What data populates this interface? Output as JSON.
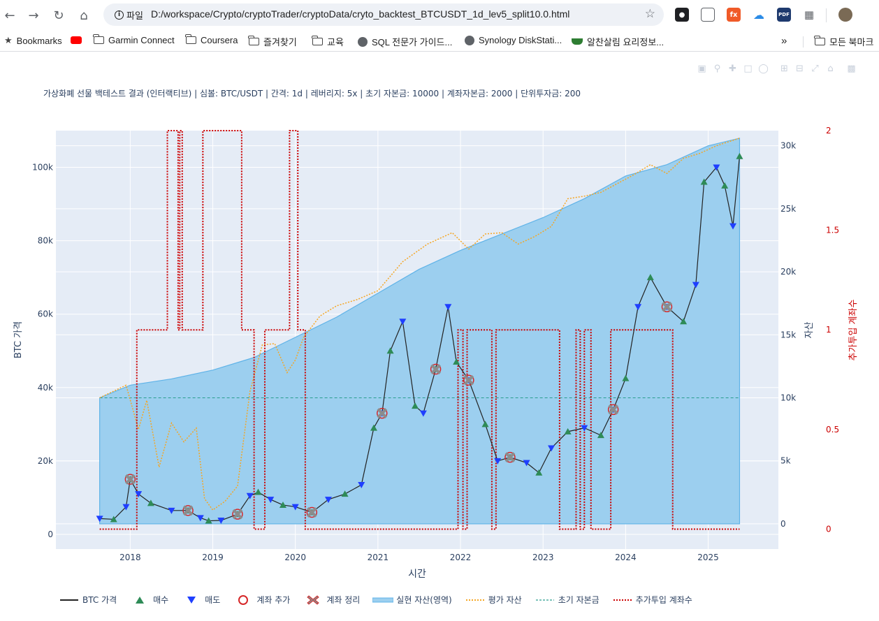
{
  "browser": {
    "page_info_label": "파일",
    "url": "D:/workspace/Crypto/cryptoTrader/cryptoData/cryto_backtest_BTCUSDT_1d_lev5_split10.0.html",
    "bookmarks": [
      {
        "label": "Bookmarks",
        "icon": "star-icon"
      },
      {
        "label": "",
        "icon": "youtube-icon"
      },
      {
        "label": "Garmin Connect",
        "icon": "folder-icon"
      },
      {
        "label": "Coursera",
        "icon": "folder-icon"
      },
      {
        "label": "즐겨찾기",
        "icon": "folder-icon"
      },
      {
        "label": "교육",
        "icon": "folder-icon"
      },
      {
        "label": "SQL 전문가 가이드...",
        "icon": "globe-icon"
      },
      {
        "label": "Synology DiskStati...",
        "icon": "globe-icon"
      },
      {
        "label": "알찬살림 요리정보...",
        "icon": "pot-icon"
      }
    ],
    "overflow_label": "»",
    "all_bookmarks_label": "모든 북마크",
    "extensions": [
      "ext-1",
      "ext-2",
      "ext-3",
      "onedrive-icon",
      "PDF",
      "puzzle-icon",
      "avatar"
    ],
    "ext_labels": {
      "ext3": "fx",
      "pdf": "PDF"
    }
  },
  "chart_data": {
    "type": "line",
    "title": "가상화폐 선물 백테스트 결과 (인터랙티브) | 심볼: BTC/USDT | 간격: 1d | 레버리지: 5x | 초기 자본금: 10000 | 계좌자본금: 2000 | 단위투자금: 200",
    "xlabel": "시간",
    "ylabel": "BTC 가격",
    "y2label": "자산",
    "y3label": "추가투입 계좌수",
    "x_ticks": [
      "2018",
      "2019",
      "2020",
      "2021",
      "2022",
      "2023",
      "2024",
      "2025"
    ],
    "y_ticks": [
      "0",
      "20k",
      "40k",
      "60k",
      "80k",
      "100k"
    ],
    "y2_ticks": [
      "0",
      "5k",
      "10k",
      "15k",
      "20k",
      "25k",
      "30k"
    ],
    "y3_ticks": [
      "0",
      "0.5",
      "1",
      "1.5",
      "2"
    ],
    "ylim": [
      -4000,
      110000
    ],
    "y2lim": [
      -2000,
      31200
    ],
    "y3lim": [
      -0.1,
      2.0
    ],
    "xlim": [
      2017.1,
      2025.85
    ],
    "colors": {
      "btc": "#222222",
      "buy": "#2e8b57",
      "sell": "#1f3fff",
      "add": "#d62728",
      "close": "#8c8c8c",
      "realized": "#9ccfef",
      "eval": "#f5a623",
      "initial": "#2a9d8f",
      "extra": "#cc0000",
      "bg": "#e5ecf6"
    },
    "series": [
      {
        "name": "BTC 가격",
        "x": [
          2017.63,
          2017.8,
          2017.95,
          2018.0,
          2018.1,
          2018.25,
          2018.5,
          2018.7,
          2018.85,
          2018.95,
          2019.1,
          2019.3,
          2019.45,
          2019.55,
          2019.7,
          2019.85,
          2020.0,
          2020.2,
          2020.4,
          2020.6,
          2020.8,
          2020.95,
          2021.05,
          2021.15,
          2021.3,
          2021.45,
          2021.55,
          2021.7,
          2021.85,
          2021.95,
          2022.1,
          2022.3,
          2022.45,
          2022.6,
          2022.8,
          2022.95,
          2023.1,
          2023.3,
          2023.5,
          2023.7,
          2023.85,
          2024.0,
          2024.15,
          2024.3,
          2024.5,
          2024.7,
          2024.85,
          2024.95,
          2025.1,
          2025.2,
          2025.3,
          2025.38
        ],
        "values": [
          4300,
          4100,
          7500,
          15000,
          11000,
          8500,
          6500,
          6500,
          4500,
          3700,
          3800,
          5500,
          10500,
          11500,
          9500,
          8000,
          7500,
          6000,
          9500,
          11000,
          13500,
          29000,
          33000,
          50000,
          58000,
          35000,
          33000,
          45000,
          62000,
          47000,
          42000,
          30000,
          20000,
          21000,
          19500,
          16800,
          23500,
          28000,
          29000,
          27000,
          34000,
          42500,
          62000,
          70000,
          62000,
          58000,
          68000,
          96000,
          100000,
          95000,
          84000,
          103000
        ]
      },
      {
        "name": "평가 자산",
        "x": [
          2017.63,
          2017.95,
          2018.1,
          2018.2,
          2018.35,
          2018.5,
          2018.65,
          2018.8,
          2018.9,
          2019.0,
          2019.15,
          2019.3,
          2019.45,
          2019.6,
          2019.75,
          2019.9,
          2020.0,
          2020.1,
          2020.3,
          2020.5,
          2020.75,
          2021.0,
          2021.3,
          2021.6,
          2021.9,
          2022.1,
          2022.3,
          2022.5,
          2022.7,
          2022.9,
          2023.1,
          2023.3,
          2023.5,
          2023.7,
          2023.9,
          2024.1,
          2024.3,
          2024.5,
          2024.7,
          2024.9,
          2025.1,
          2025.38
        ],
        "values": [
          10000,
          11000,
          7500,
          9800,
          4500,
          8000,
          6500,
          7600,
          2000,
          1100,
          1800,
          3000,
          10500,
          14200,
          14300,
          12000,
          13000,
          14800,
          16500,
          17300,
          17800,
          18500,
          20800,
          22200,
          23100,
          21800,
          23000,
          23100,
          22200,
          22800,
          23600,
          25800,
          26000,
          26300,
          27000,
          27700,
          28500,
          27800,
          29000,
          29400,
          30000,
          30600
        ]
      },
      {
        "name": "실현 자산(영역)",
        "x": [
          2017.63,
          2018.0,
          2018.5,
          2019.0,
          2019.5,
          2020.0,
          2020.5,
          2021.0,
          2021.5,
          2022.0,
          2022.5,
          2023.0,
          2023.5,
          2024.0,
          2024.5,
          2025.0,
          2025.38
        ],
        "values": [
          10000,
          11000,
          11500,
          12200,
          13200,
          14800,
          16400,
          18300,
          20200,
          21700,
          23000,
          24300,
          25800,
          27600,
          28500,
          30000,
          30600
        ]
      },
      {
        "name": "초기 자본금",
        "x": [
          2017.63,
          2025.38
        ],
        "values": [
          10000,
          10000
        ]
      },
      {
        "name": "추가투입 계좌수",
        "x": [
          2017.63,
          2018.08,
          2018.08,
          2018.45,
          2018.45,
          2018.58,
          2018.58,
          2018.6,
          2018.6,
          2018.63,
          2018.63,
          2018.88,
          2018.88,
          2019.35,
          2019.35,
          2019.5,
          2019.5,
          2019.63,
          2019.63,
          2019.93,
          2019.93,
          2020.03,
          2020.03,
          2020.12,
          2020.12,
          2021.97,
          2021.97,
          2022.03,
          2022.03,
          2022.08,
          2022.08,
          2022.38,
          2022.38,
          2022.43,
          2022.43,
          2023.2,
          2023.2,
          2023.4,
          2023.4,
          2023.45,
          2023.45,
          2023.5,
          2023.5,
          2023.58,
          2023.58,
          2023.82,
          2023.82,
          2024.57,
          2024.57,
          2025.38
        ],
        "values": [
          0,
          0,
          1,
          1,
          2,
          2,
          1,
          1,
          2,
          2,
          1,
          1,
          2,
          2,
          1,
          1,
          0,
          0,
          1,
          1,
          2,
          2,
          1,
          1,
          0,
          0,
          1,
          1,
          0,
          0,
          1,
          1,
          0,
          0,
          1,
          1,
          0,
          0,
          1,
          1,
          0,
          0,
          1,
          1,
          0,
          0,
          1,
          1,
          0,
          0
        ]
      }
    ],
    "legend_entries": [
      "BTC 가격",
      "매수",
      "매도",
      "계좌 추가",
      "계좌 정리",
      "실현 자산(영역)",
      "평가 자산",
      "초기 자본금",
      "추가투입 계좌수"
    ],
    "legend_position": "bottom",
    "grid": true
  }
}
